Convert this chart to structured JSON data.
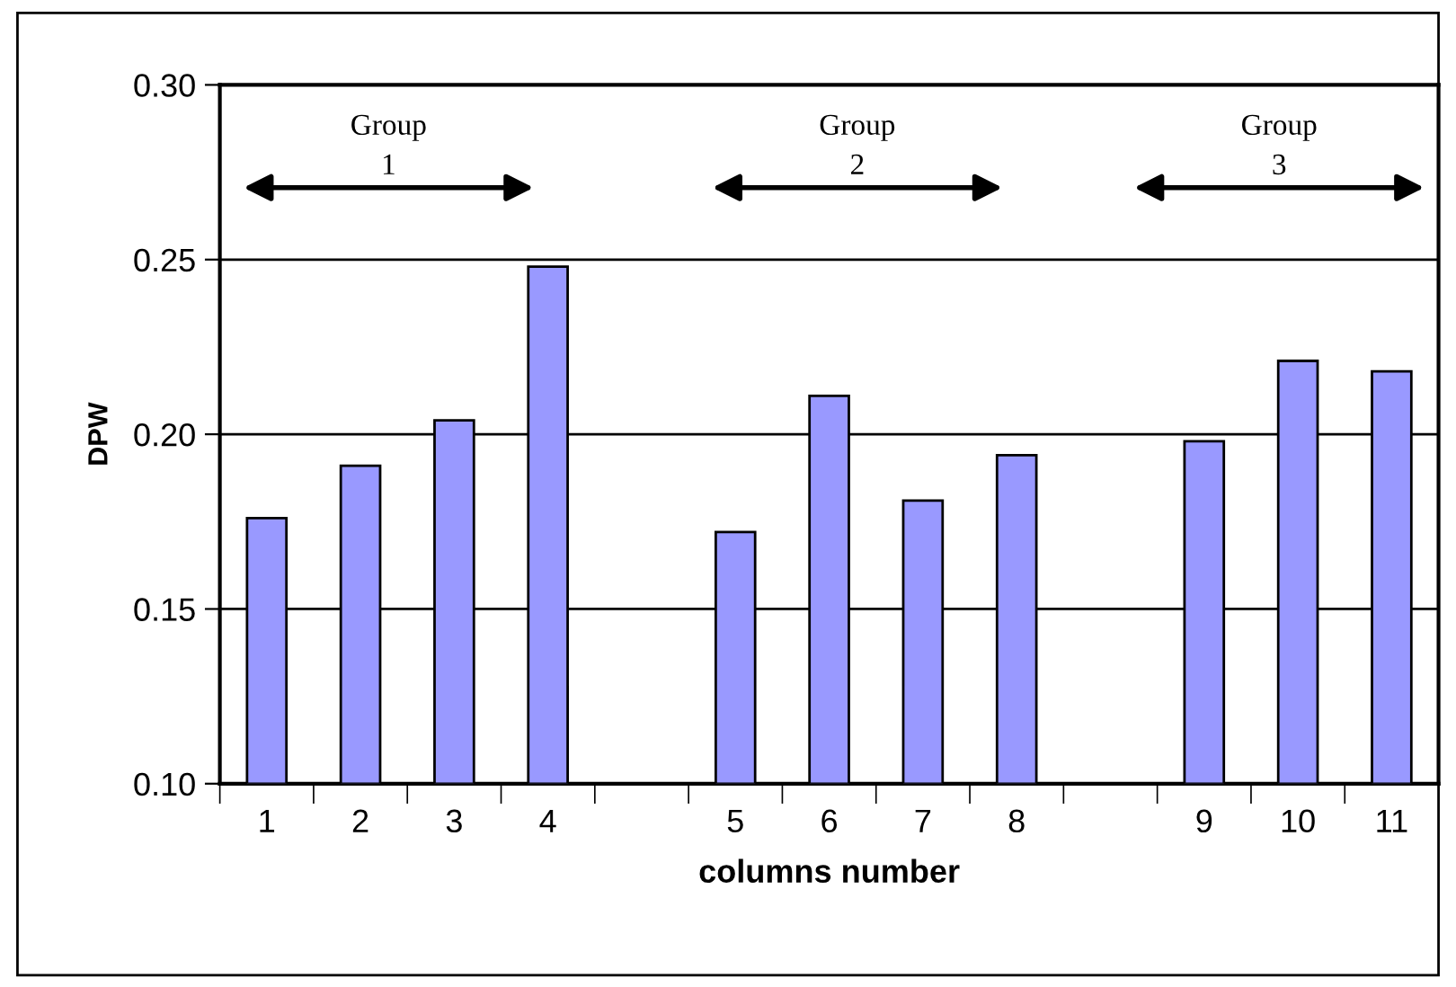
{
  "chart_data": {
    "type": "bar",
    "xlabel": "columns number",
    "ylabel": "DPW",
    "categories": [
      "1",
      "2",
      "3",
      "4",
      null,
      "5",
      "6",
      "7",
      "8",
      null,
      "9",
      "10",
      "11"
    ],
    "values": [
      0.176,
      0.191,
      0.204,
      0.248,
      null,
      0.172,
      0.211,
      0.181,
      0.194,
      null,
      0.198,
      0.221,
      0.218
    ],
    "color": "#9999ff",
    "ylim": [
      0.1,
      0.3
    ],
    "yticks": [
      {
        "value": 0.1,
        "label": "0.10"
      },
      {
        "value": 0.15,
        "label": "0.15"
      },
      {
        "value": 0.2,
        "label": "0.20"
      },
      {
        "value": 0.25,
        "label": "0.25"
      },
      {
        "value": 0.3,
        "label": "0.30"
      }
    ],
    "grid": "y",
    "annotations": [
      "Group\n1",
      "Group\n2",
      "Group\n3"
    ]
  }
}
